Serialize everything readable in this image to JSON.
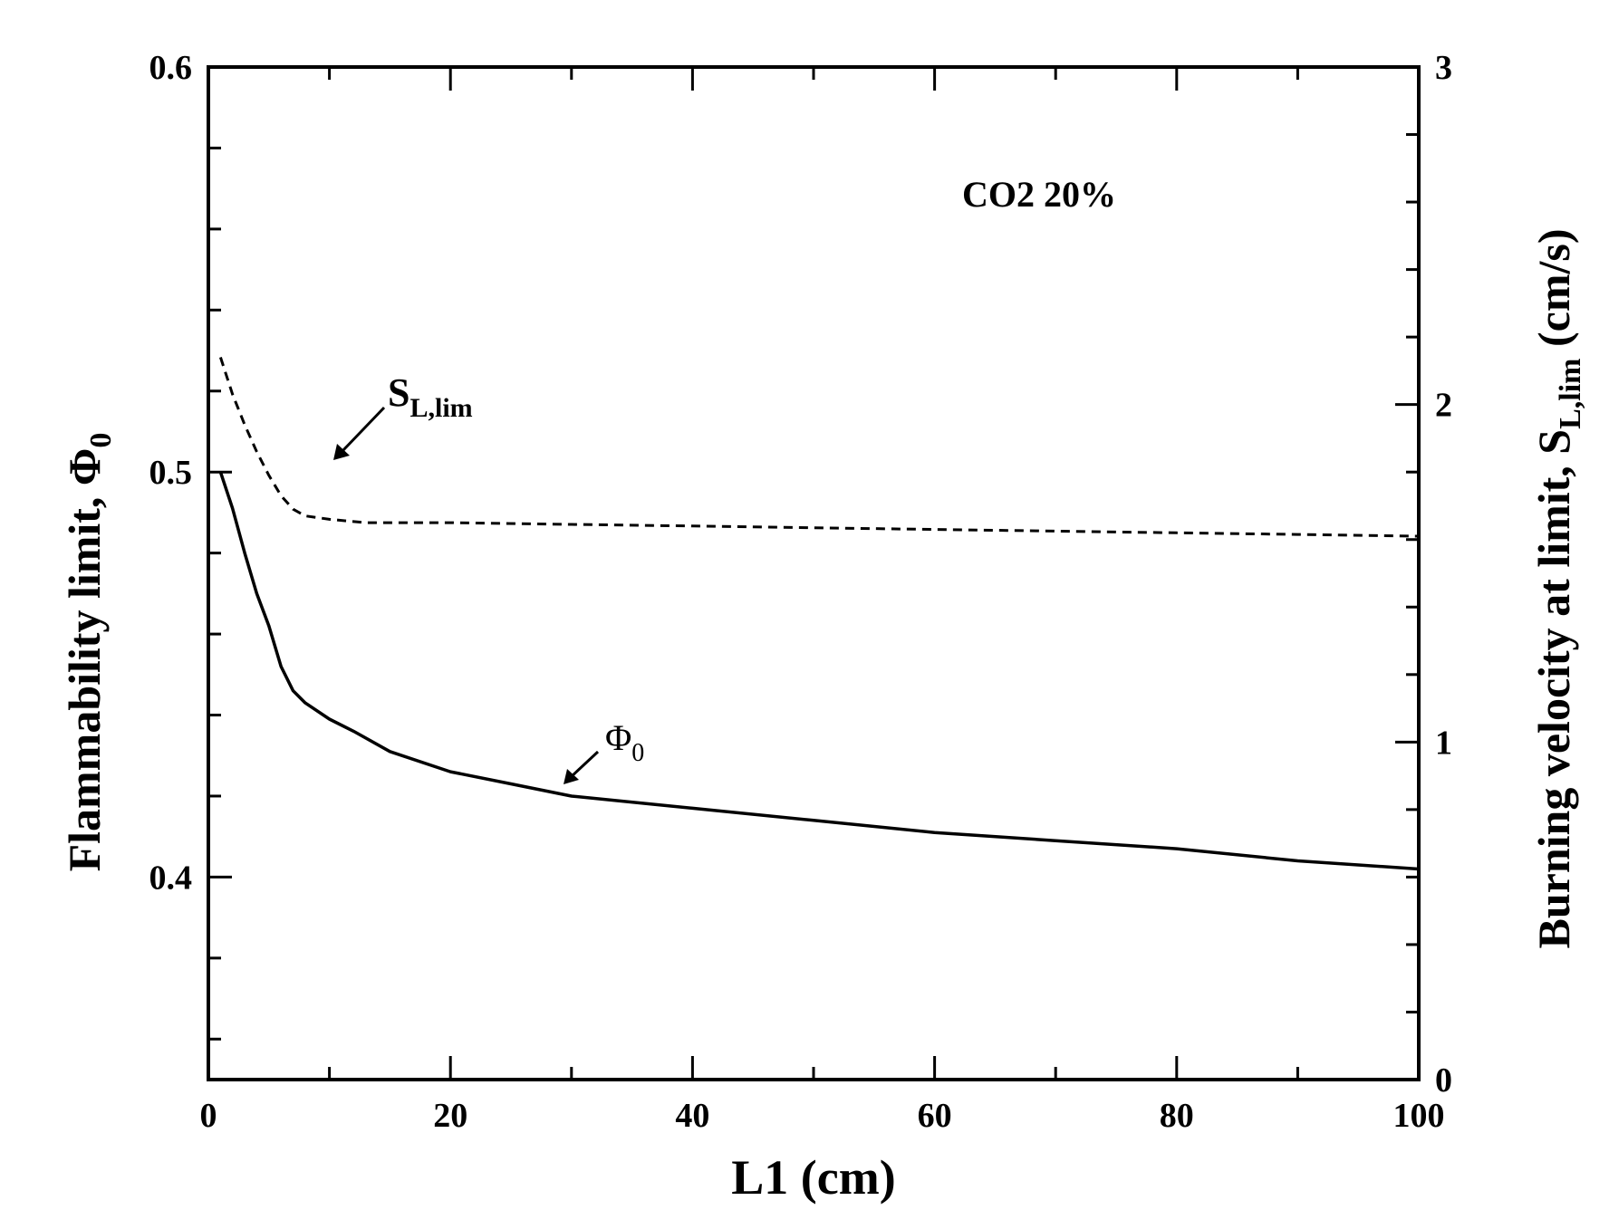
{
  "chart_data": {
    "type": "line",
    "xlabel": "L1 (cm)",
    "ylabel": "Flammability limit, Φ0",
    "y2label": "Burning velocity at limit, SL,lim (cm/s)",
    "xlim": [
      0,
      100
    ],
    "ylim": [
      0.35,
      0.6
    ],
    "y2lim": [
      0,
      3
    ],
    "x_ticks": [
      0,
      20,
      40,
      60,
      80,
      100
    ],
    "y_ticks": [
      0.4,
      0.5,
      0.6
    ],
    "y2_ticks": [
      0,
      1,
      2,
      3
    ],
    "annotation": "CO2  20%",
    "series": [
      {
        "name": "Φ0",
        "axis": "left",
        "style": "solid",
        "x": [
          1,
          2,
          3,
          4,
          5,
          6,
          7,
          8,
          10,
          12,
          15,
          20,
          25,
          30,
          40,
          50,
          60,
          70,
          80,
          90,
          100
        ],
        "y": [
          0.5,
          0.491,
          0.48,
          0.47,
          0.462,
          0.452,
          0.446,
          0.443,
          0.439,
          0.436,
          0.431,
          0.426,
          0.423,
          0.42,
          0.417,
          0.414,
          0.411,
          0.409,
          0.407,
          0.404,
          0.402
        ]
      },
      {
        "name": "SL,lim",
        "axis": "right",
        "style": "dashed",
        "x": [
          1,
          2,
          3,
          4,
          5,
          6,
          7,
          8,
          10,
          13,
          20,
          30,
          40,
          50,
          60,
          70,
          80,
          90,
          100
        ],
        "y": [
          2.14,
          2.03,
          1.94,
          1.86,
          1.79,
          1.73,
          1.69,
          1.67,
          1.66,
          1.65,
          1.65,
          1.645,
          1.64,
          1.635,
          1.63,
          1.625,
          1.62,
          1.615,
          1.61
        ]
      }
    ],
    "labels": {
      "phi": "Φ",
      "phi_sub": "0",
      "sl": "S",
      "sl_sub": "L,lim",
      "y_main": "Flammability limit, Φ",
      "y_sub": "0",
      "y2_main": "Burning velocity at limit, S",
      "y2_sub": "L,lim",
      "y2_unit": " (cm/s)"
    }
  }
}
